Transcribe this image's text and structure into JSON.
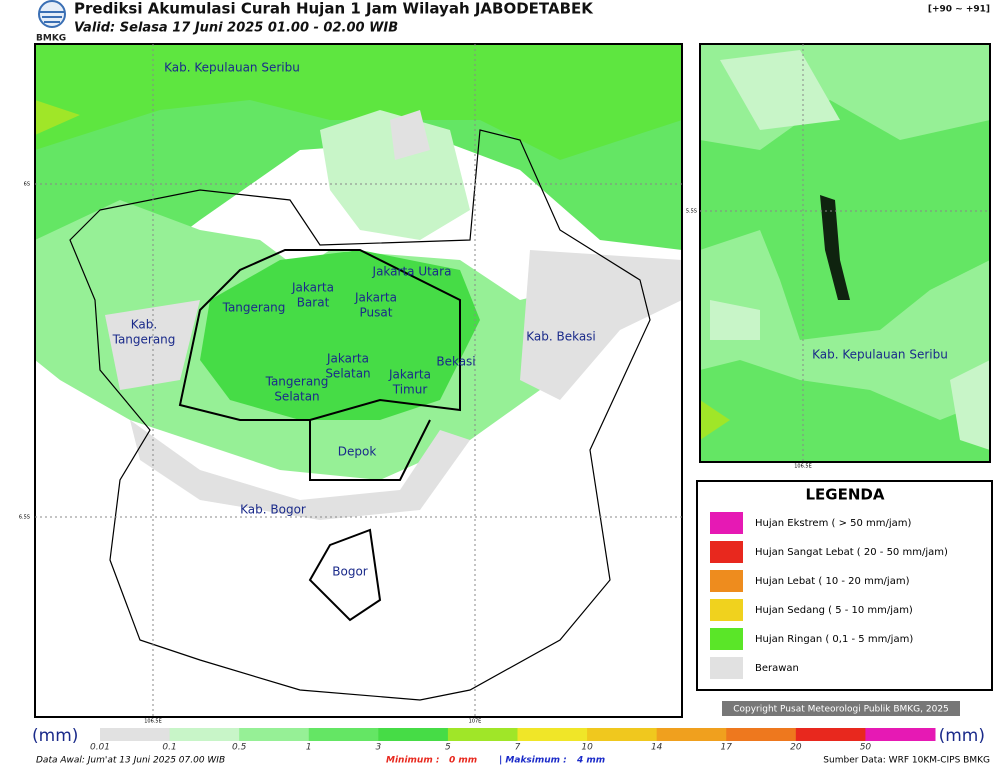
{
  "header": {
    "logo": "BMKG",
    "title": "Prediksi Akumulasi Curah Hujan 1 Jam Wilayah JABODETABEK",
    "subtitle": "Valid: Selasa 17 Juni 2025 01.00 - 02.00 WIB",
    "code": "[+90 ~ +91]"
  },
  "map": {
    "regions": [
      {
        "lines": [
          "Kab. Kepulauan Seribu"
        ]
      },
      {
        "lines": [
          "Jakarta Utara"
        ]
      },
      {
        "lines": [
          "Jakarta",
          "Barat"
        ]
      },
      {
        "lines": [
          "Jakarta",
          "Pusat"
        ]
      },
      {
        "lines": [
          "Tangerang"
        ]
      },
      {
        "lines": [
          "Kab.",
          "Tangerang"
        ]
      },
      {
        "lines": [
          "Kab. Bekasi"
        ]
      },
      {
        "lines": [
          "Bekasi"
        ]
      },
      {
        "lines": [
          "Jakarta",
          "Selatan"
        ]
      },
      {
        "lines": [
          "Jakarta",
          "Timur"
        ]
      },
      {
        "lines": [
          "Tangerang",
          "Selatan"
        ]
      },
      {
        "lines": [
          "Depok"
        ]
      },
      {
        "lines": [
          "Kab. Bogor"
        ]
      },
      {
        "lines": [
          "Bogor"
        ]
      }
    ],
    "lat_labels": [
      "6S",
      "6.5S"
    ],
    "lon_labels": [
      "106.5E",
      "107E"
    ]
  },
  "inset": {
    "region": "Kab. Kepulauan Seribu",
    "lat_label": "5.5S",
    "lon_label": "106.5E"
  },
  "legend": {
    "title": "LEGENDA",
    "items": [
      {
        "label": "Hujan Ekstrem ( > 50 mm/jam)",
        "color": "#e619b4"
      },
      {
        "label": "Hujan Sangat Lebat ( 20 - 50 mm/jam)",
        "color": "#e8281e"
      },
      {
        "label": "Hujan Lebat ( 10 - 20 mm/jam)",
        "color": "#ee8c1e"
      },
      {
        "label": "Hujan Sedang ( 5 - 10 mm/jam)",
        "color": "#f0d21e"
      },
      {
        "label": "Hujan Ringan ( 0,1 - 5 mm/jam)",
        "color": "#5ae628"
      },
      {
        "label": "Berawan",
        "color": "#e1e1e1"
      }
    ],
    "copyright": "Copyright Pusat Meteorologi Publik BMKG, 2025"
  },
  "colorbar": {
    "unit": "(mm)",
    "ticks": [
      0.01,
      0.1,
      0.5,
      1,
      3,
      5,
      7,
      10,
      14,
      17,
      20,
      50
    ],
    "colors": [
      "#e1e1e1",
      "#c8f5c8",
      "#96f096",
      "#64e664",
      "#46dc46",
      "#a0e628",
      "#f0e628",
      "#f0c81e",
      "#f0a01e",
      "#ee781e",
      "#e8281e",
      "#e619b4"
    ]
  },
  "footer": {
    "data_awal": "Data Awal: Jum'at 13 Juni 2025 07.00 WIB",
    "min_label": "Minimum :",
    "min_value": "0 mm",
    "max_label": "| Maksimum :",
    "max_value": "4 mm",
    "source": "Sumber Data: WRF 10KM-CIPS BMKG"
  }
}
